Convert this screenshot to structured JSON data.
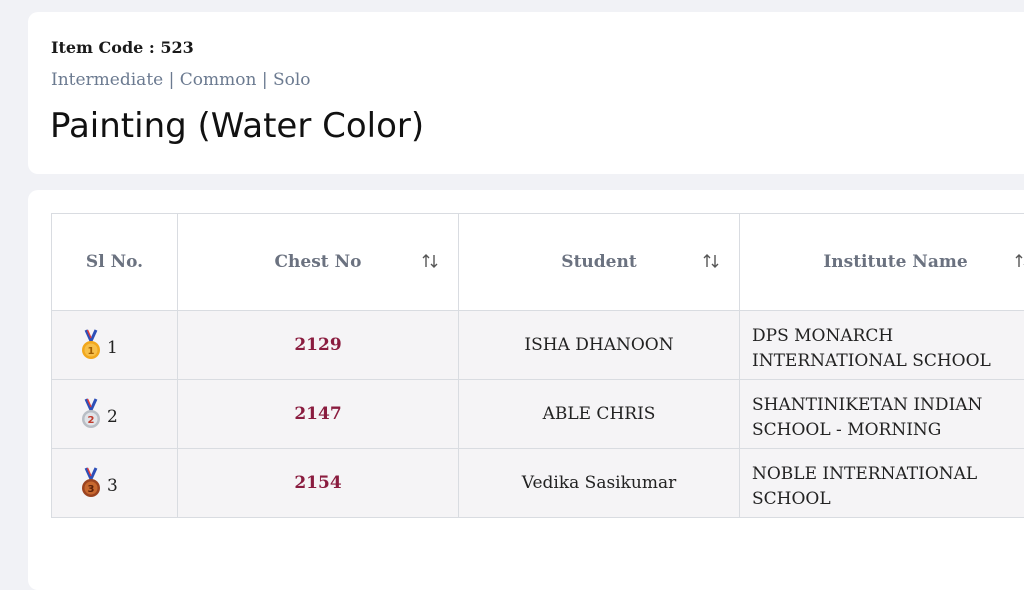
{
  "item": {
    "code_label": "Item Code : 523",
    "subtitle": "Intermediate | Common | Solo",
    "title": "Painting (Water Color)"
  },
  "table": {
    "headers": {
      "sl_no": "Sl No.",
      "chest_no": "Chest No",
      "student": "Student",
      "institute": "Institute Name"
    },
    "rows": [
      {
        "medal": "gold-medal-icon",
        "sl": "1",
        "chest": "2129",
        "student": "ISHA DHANOON",
        "institute": "DPS MONARCH INTERNATIONAL SCHOOL"
      },
      {
        "medal": "silver-medal-icon",
        "sl": "2",
        "chest": "2147",
        "student": "ABLE CHRIS",
        "institute": "SHANTINIKETAN INDIAN SCHOOL - MORNING"
      },
      {
        "medal": "bronze-medal-icon",
        "sl": "3",
        "chest": "2154",
        "student": "Vedika Sasikumar",
        "institute": "NOBLE INTERNATIONAL SCHOOL"
      }
    ]
  },
  "colors": {
    "chest_number": "#8a1c3f",
    "gold": "#f2a81d",
    "silver": "#cfd3d8",
    "bronze": "#b5562a"
  }
}
